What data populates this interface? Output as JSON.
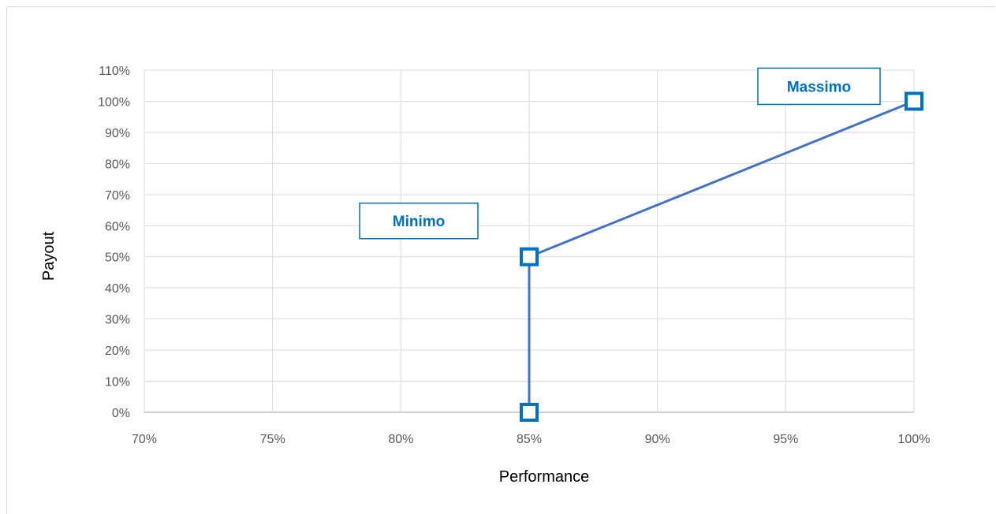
{
  "chart_data": {
    "type": "line",
    "title": "",
    "xlabel": "Performance",
    "ylabel": "Payout",
    "xlim": [
      70,
      100
    ],
    "ylim": [
      0,
      110
    ],
    "x_ticks": [
      "70%",
      "75%",
      "80%",
      "85%",
      "90%",
      "95%",
      "100%"
    ],
    "y_ticks": [
      "0%",
      "10%",
      "20%",
      "30%",
      "40%",
      "50%",
      "60%",
      "70%",
      "80%",
      "90%",
      "100%",
      "110%"
    ],
    "grid": true,
    "series": [
      {
        "x": [
          85,
          85,
          100
        ],
        "y": [
          0,
          50,
          100
        ],
        "marker": "square-hollow"
      }
    ],
    "annotations": [
      {
        "text": "Minimo",
        "x": 85,
        "y": 50
      },
      {
        "text": "Massimo",
        "x": 100,
        "y": 100
      }
    ],
    "colors": {
      "line": "#4472c4",
      "marker_border": "#0070c0",
      "callout_text": "#0070c0",
      "grid": "#d9d9d9",
      "axis": "#bfbfbf"
    }
  }
}
